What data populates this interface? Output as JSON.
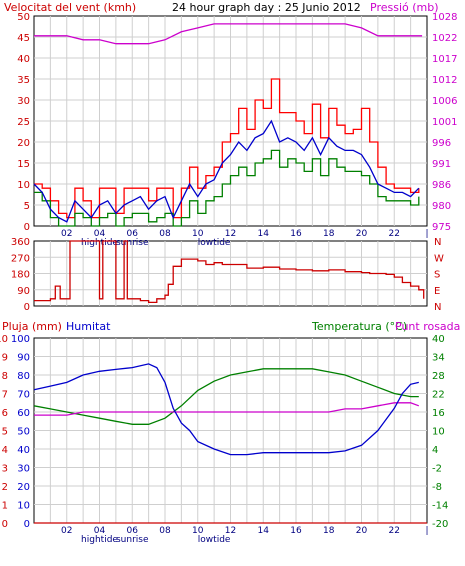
{
  "chart_data": [
    {
      "type": "line",
      "title": "24 hour graph day : 25 Junio 2012",
      "ylabel_left": "Velocitat del vent (kmh)",
      "ylabel_right": "Pressió (mb)",
      "ylim_left": [
        0,
        50
      ],
      "ylim_right": [
        975,
        1028
      ],
      "yticks_left": [
        "0",
        "5",
        "10",
        "15",
        "20",
        "25",
        "30",
        "35",
        "40",
        "45",
        "50"
      ],
      "yticks_right": [
        "975",
        "980",
        "986",
        "991",
        "996",
        "1001",
        "1006",
        "1012",
        "1017",
        "1022",
        "1028"
      ],
      "x_hours": [
        0,
        24
      ],
      "xticks": [
        "02",
        "04",
        "06",
        "08",
        "10",
        "12",
        "14",
        "16",
        "18",
        "20",
        "22",
        "|"
      ],
      "x_markers": [
        "hightide",
        "sunrise",
        "lowtide"
      ],
      "colors": {
        "gust": "#ff0000",
        "avg": "#0000cc",
        "min": "#008000",
        "pressure": "#cc00cc",
        "axis_left": "#cc0000",
        "axis_right": "#cc00cc"
      },
      "series": [
        {
          "name": "gust",
          "x": [
            0,
            0.5,
            1,
            1.5,
            2,
            2.5,
            3,
            3.5,
            4,
            4.5,
            5,
            5.5,
            6,
            6.5,
            7,
            7.5,
            8,
            8.5,
            9,
            9.5,
            10,
            10.5,
            11,
            11.5,
            12,
            12.5,
            13,
            13.5,
            14,
            14.5,
            15,
            15.5,
            16,
            16.5,
            17,
            17.5,
            18,
            18.5,
            19,
            19.5,
            20,
            20.5,
            21,
            21.5,
            22,
            22.5,
            23,
            23.5
          ],
          "values": [
            10,
            9,
            6,
            3,
            2,
            9,
            6,
            2,
            9,
            9,
            3,
            9,
            9,
            9,
            6,
            9,
            9,
            2,
            9,
            14,
            9,
            12,
            14,
            20,
            22,
            28,
            23,
            30,
            28,
            35,
            27,
            27,
            25,
            22,
            29,
            21,
            28,
            24,
            22,
            23,
            28,
            20,
            14,
            10,
            9,
            9,
            8,
            9
          ]
        },
        {
          "name": "avg",
          "x": [
            0,
            0.5,
            1,
            1.5,
            2,
            2.5,
            3,
            3.5,
            4,
            4.5,
            5,
            5.5,
            6,
            6.5,
            7,
            7.5,
            8,
            8.5,
            9,
            9.5,
            10,
            10.5,
            11,
            11.5,
            12,
            12.5,
            13,
            13.5,
            14,
            14.5,
            15,
            15.5,
            16,
            16.5,
            17,
            17.5,
            18,
            18.5,
            19,
            19.5,
            20,
            20.5,
            21,
            21.5,
            22,
            22.5,
            23,
            23.5
          ],
          "values": [
            10,
            8,
            4,
            2,
            1,
            6,
            4,
            2,
            5,
            6,
            3,
            5,
            6,
            7,
            4,
            6,
            7,
            2,
            6,
            10,
            7,
            10,
            11,
            15,
            17,
            20,
            18,
            21,
            22,
            25,
            20,
            21,
            20,
            18,
            21,
            17,
            21,
            19,
            18,
            18,
            17,
            14,
            10,
            9,
            8,
            8,
            7,
            9
          ]
        },
        {
          "name": "min",
          "x": [
            0,
            0.5,
            1,
            1.5,
            2,
            2.5,
            3,
            3.5,
            4,
            4.5,
            5,
            5.5,
            6,
            6.5,
            7,
            7.5,
            8,
            8.5,
            9,
            9.5,
            10,
            10.5,
            11,
            11.5,
            12,
            12.5,
            13,
            13.5,
            14,
            14.5,
            15,
            15.5,
            16,
            16.5,
            17,
            17.5,
            18,
            18.5,
            19,
            19.5,
            20,
            20.5,
            21,
            21.5,
            22,
            22.5,
            23,
            23.5
          ],
          "values": [
            8,
            6,
            2,
            0,
            0,
            3,
            2,
            0,
            2,
            3,
            0,
            2,
            3,
            3,
            1,
            2,
            3,
            0,
            2,
            6,
            3,
            6,
            7,
            10,
            12,
            14,
            12,
            15,
            16,
            18,
            14,
            16,
            15,
            13,
            16,
            12,
            16,
            14,
            13,
            13,
            12,
            10,
            7,
            6,
            6,
            6,
            5,
            7
          ]
        },
        {
          "name": "pressure",
          "x": [
            0,
            1,
            2,
            3,
            4,
            5,
            6,
            7,
            8,
            9,
            10,
            11,
            12,
            13,
            14,
            15,
            16,
            17,
            18,
            19,
            20,
            21,
            22,
            23,
            23.7
          ],
          "values": [
            1023,
            1023,
            1023,
            1022,
            1022,
            1021,
            1021,
            1021,
            1022,
            1024,
            1025,
            1026,
            1026,
            1026,
            1026,
            1026,
            1026,
            1026,
            1026,
            1026,
            1025,
            1023,
            1023,
            1023,
            1023
          ]
        }
      ]
    },
    {
      "type": "line",
      "yticks_left": [
        "0",
        "90",
        "180",
        "270",
        "360"
      ],
      "yticks_right": [
        "N",
        "E",
        "S",
        "W",
        "N"
      ],
      "ylim": [
        0,
        360
      ],
      "colors": {
        "direction": "#cc0000"
      },
      "series": [
        {
          "name": "direction",
          "x": [
            0,
            0.5,
            1,
            1.3,
            1.6,
            1.8,
            2.2,
            2.5,
            3,
            3.5,
            4,
            4.2,
            4.5,
            5,
            5.5,
            5.7,
            6,
            6.5,
            7,
            7.5,
            8,
            8.2,
            8.5,
            9,
            9.5,
            10,
            10.5,
            11,
            11.5,
            12,
            13,
            14,
            15,
            16,
            17,
            18,
            19,
            20,
            20.5,
            21,
            21.5,
            22,
            22.5,
            23,
            23.5,
            23.8
          ],
          "values": [
            30,
            30,
            40,
            110,
            40,
            40,
            360,
            360,
            360,
            360,
            40,
            360,
            360,
            40,
            360,
            40,
            40,
            30,
            20,
            40,
            60,
            120,
            220,
            260,
            260,
            250,
            230,
            240,
            230,
            230,
            210,
            215,
            205,
            200,
            195,
            200,
            190,
            185,
            180,
            180,
            175,
            160,
            130,
            110,
            90,
            40
          ]
        }
      ]
    },
    {
      "type": "line",
      "ylabel_left": "Pluja (mm)",
      "ylabel_left2": "Humitat",
      "ylabel_right": "Temperatura (°C)",
      "ylabel_right2": "Punt rosada",
      "yticks_rain": [
        "0",
        "1",
        "2",
        "3",
        "4",
        "5",
        "6",
        "7",
        "8",
        "9",
        "10"
      ],
      "yticks_hum": [
        "0",
        "10",
        "20",
        "30",
        "40",
        "50",
        "60",
        "70",
        "80",
        "90",
        "100"
      ],
      "yticks_temp": [
        "-20",
        "-14",
        "-8",
        "-2",
        "4",
        "10",
        "16",
        "22",
        "28",
        "34",
        "40"
      ],
      "ylim_temp": [
        -20,
        40
      ],
      "ylim_hum": [
        0,
        100
      ],
      "colors": {
        "humidity": "#0000cc",
        "temperature": "#008000",
        "dewpoint": "#cc00cc",
        "rain": "#cc0000",
        "axis_rain": "#cc0000",
        "axis_hum": "#0000cc",
        "axis_temp": "#008000"
      },
      "series": [
        {
          "name": "humidity",
          "x": [
            0,
            1,
            2,
            3,
            4,
            5,
            6,
            7,
            7.5,
            8,
            8.5,
            9,
            9.5,
            10,
            11,
            12,
            13,
            14,
            15,
            16,
            17,
            18,
            19,
            20,
            21,
            22,
            22.5,
            23,
            23.5
          ],
          "values": [
            72,
            74,
            76,
            80,
            82,
            83,
            84,
            86,
            84,
            76,
            62,
            54,
            50,
            44,
            40,
            37,
            37,
            38,
            38,
            38,
            38,
            38,
            39,
            42,
            50,
            62,
            70,
            75,
            76
          ]
        },
        {
          "name": "temperature",
          "x": [
            0,
            1,
            2,
            3,
            4,
            5,
            6,
            7,
            8,
            9,
            10,
            11,
            12,
            13,
            14,
            15,
            16,
            17,
            18,
            19,
            20,
            21,
            22,
            23,
            23.5
          ],
          "values": [
            18,
            17,
            16,
            15,
            14,
            13,
            12,
            12,
            14,
            18,
            23,
            26,
            28,
            29,
            30,
            30,
            30,
            30,
            29,
            28,
            26,
            24,
            22,
            21,
            21
          ]
        },
        {
          "name": "dewpoint",
          "x": [
            0,
            1,
            2,
            3,
            4,
            5,
            6,
            7,
            8,
            9,
            10,
            11,
            12,
            13,
            14,
            15,
            16,
            17,
            18,
            19,
            20,
            21,
            22,
            23,
            23.5
          ],
          "values": [
            15,
            15,
            15,
            16,
            16,
            16,
            16,
            16,
            16,
            16,
            16,
            16,
            16,
            16,
            16,
            16,
            16,
            16,
            16,
            17,
            17,
            18,
            19,
            19,
            18
          ]
        },
        {
          "name": "rain",
          "x": [
            0,
            24
          ],
          "values": [
            0,
            0
          ]
        }
      ]
    }
  ]
}
